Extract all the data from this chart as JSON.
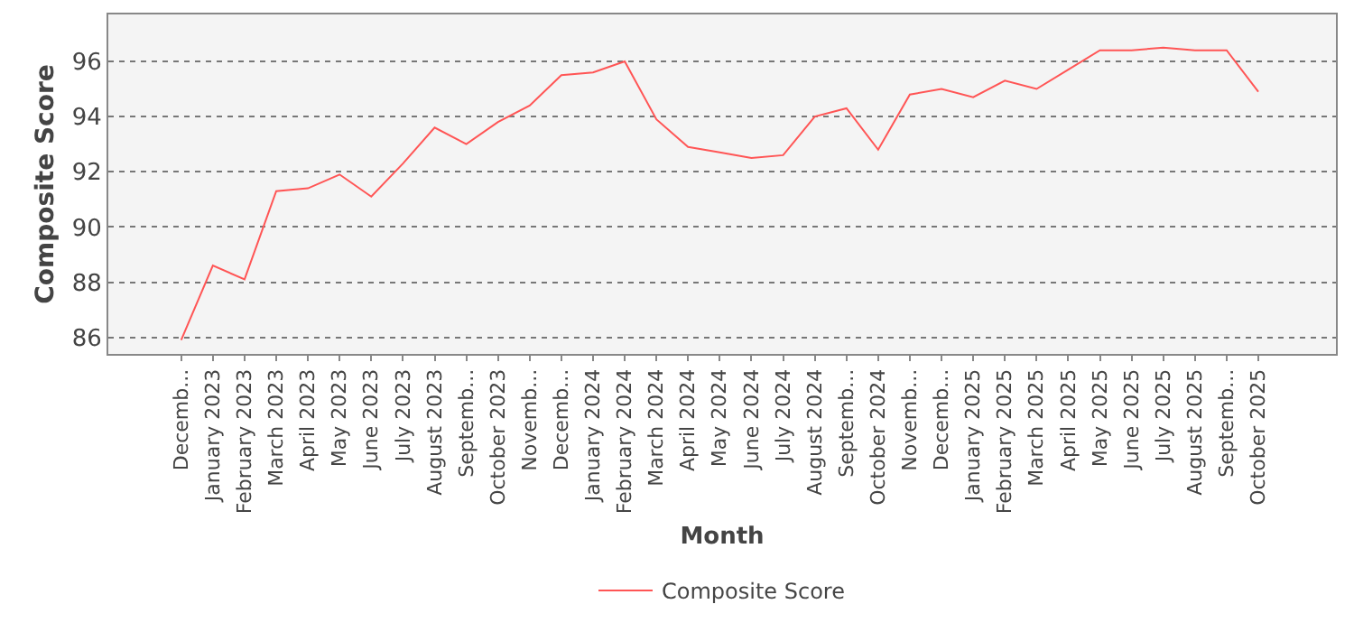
{
  "chart_data": {
    "type": "line",
    "xlabel": "Month",
    "ylabel": "Composite Score",
    "categories": [
      "Decemb...",
      "January 2023",
      "February 2023",
      "March 2023",
      "April 2023",
      "May 2023",
      "June 2023",
      "July 2023",
      "August 2023",
      "Septemb...",
      "October 2023",
      "Novemb...",
      "Decemb...",
      "January 2024",
      "February 2024",
      "March 2024",
      "April 2024",
      "May 2024",
      "June 2024",
      "July 2024",
      "August 2024",
      "Septemb...",
      "October 2024",
      "Novemb...",
      "Decemb...",
      "January 2025",
      "February 2025",
      "March 2025",
      "April 2025",
      "May 2025",
      "June 2025",
      "July 2025",
      "August 2025",
      "Septemb...",
      "October 2025"
    ],
    "series": [
      {
        "name": "Composite Score",
        "color": "#ff5555",
        "values": [
          85.9,
          88.6,
          88.1,
          91.3,
          91.4,
          91.9,
          91.1,
          92.3,
          93.6,
          93.0,
          93.8,
          94.4,
          95.5,
          95.6,
          96.0,
          93.9,
          92.9,
          92.7,
          92.5,
          92.6,
          94.0,
          94.3,
          92.8,
          94.8,
          95.0,
          94.7,
          95.3,
          95.0,
          95.7,
          96.4,
          96.4,
          96.5,
          96.4,
          96.4,
          94.9
        ]
      }
    ],
    "ylim": [
      85.4,
      97.7
    ],
    "yticks": [
      86,
      88,
      90,
      92,
      94,
      96
    ],
    "grid": "y",
    "legend": "bottom",
    "line_style": "solid",
    "marker": "none"
  }
}
